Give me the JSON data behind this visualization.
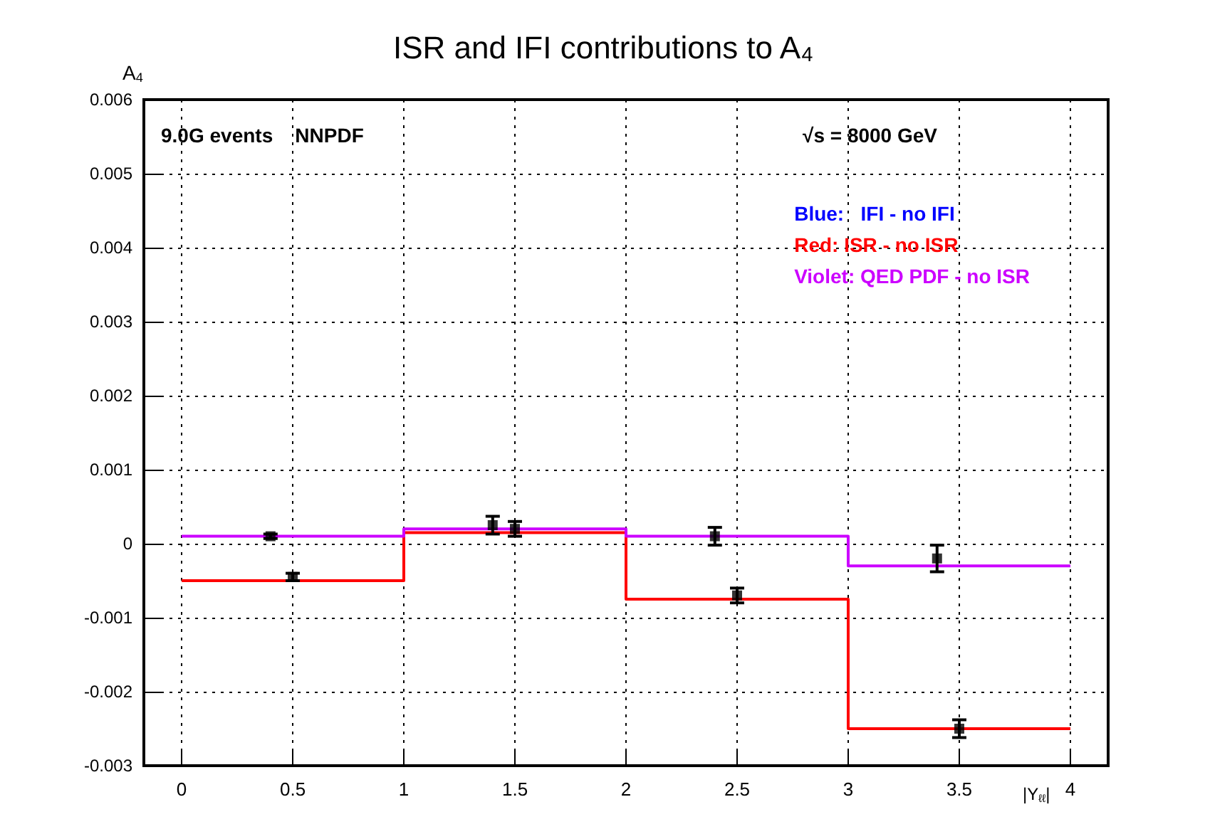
{
  "chart_data": {
    "type": "step",
    "title": "ISR and IFI contributions to A$_{4}$",
    "xlabel": "|Y$_{ℓℓ}$|",
    "ylabel": "A$_{4}$",
    "annotations": [
      "9.0G events    NNPDF",
      "√s = 8000 GeV"
    ],
    "xlim": [
      -0.17,
      4.17
    ],
    "xticks": [
      0,
      0.5,
      1,
      1.5,
      2,
      2.5,
      3,
      3.5,
      4
    ],
    "ylim": [
      -0.003,
      0.006
    ],
    "yticks": [
      -0.003,
      -0.002,
      -0.001,
      0,
      0.001,
      0.002,
      0.003,
      0.004,
      0.005,
      0.006
    ],
    "grid": true,
    "legend": "top right",
    "line_style": "solid",
    "x": [
      0,
      1,
      2,
      3,
      4
    ],
    "series": [
      {
        "name": "Blue:   IFI - no IFI",
        "color": "#0000ff",
        "values": [
          null,
          null,
          null,
          null,
          null
        ]
      },
      {
        "name": "Red: ISR - no ISR",
        "color": "#ff0000",
        "values": [
          -0.0005,
          0.00015,
          -0.00075,
          -0.0025,
          -0.0025
        ]
      },
      {
        "name": "Violet: QED PDF - no ISR",
        "color": "#cc00ff",
        "values": [
          0.0001,
          0.0002,
          0.0001,
          -0.0003,
          -0.0003
        ]
      },
      {
        "type": "scatter",
        "marker": "square",
        "color": "#000000",
        "x": [
          0.4,
          0.5,
          1.4,
          1.5,
          2.4,
          2.5,
          3.4,
          3.5
        ],
        "values": [
          0.0001,
          -0.00045,
          0.00025,
          0.0002,
          0.0001,
          -0.0007,
          -0.0002,
          -0.0025
        ],
        "errors": [
          3e-05,
          5e-05,
          0.00012,
          0.0001,
          0.00012,
          0.0001,
          0.00018,
          0.00012
        ]
      }
    ]
  }
}
